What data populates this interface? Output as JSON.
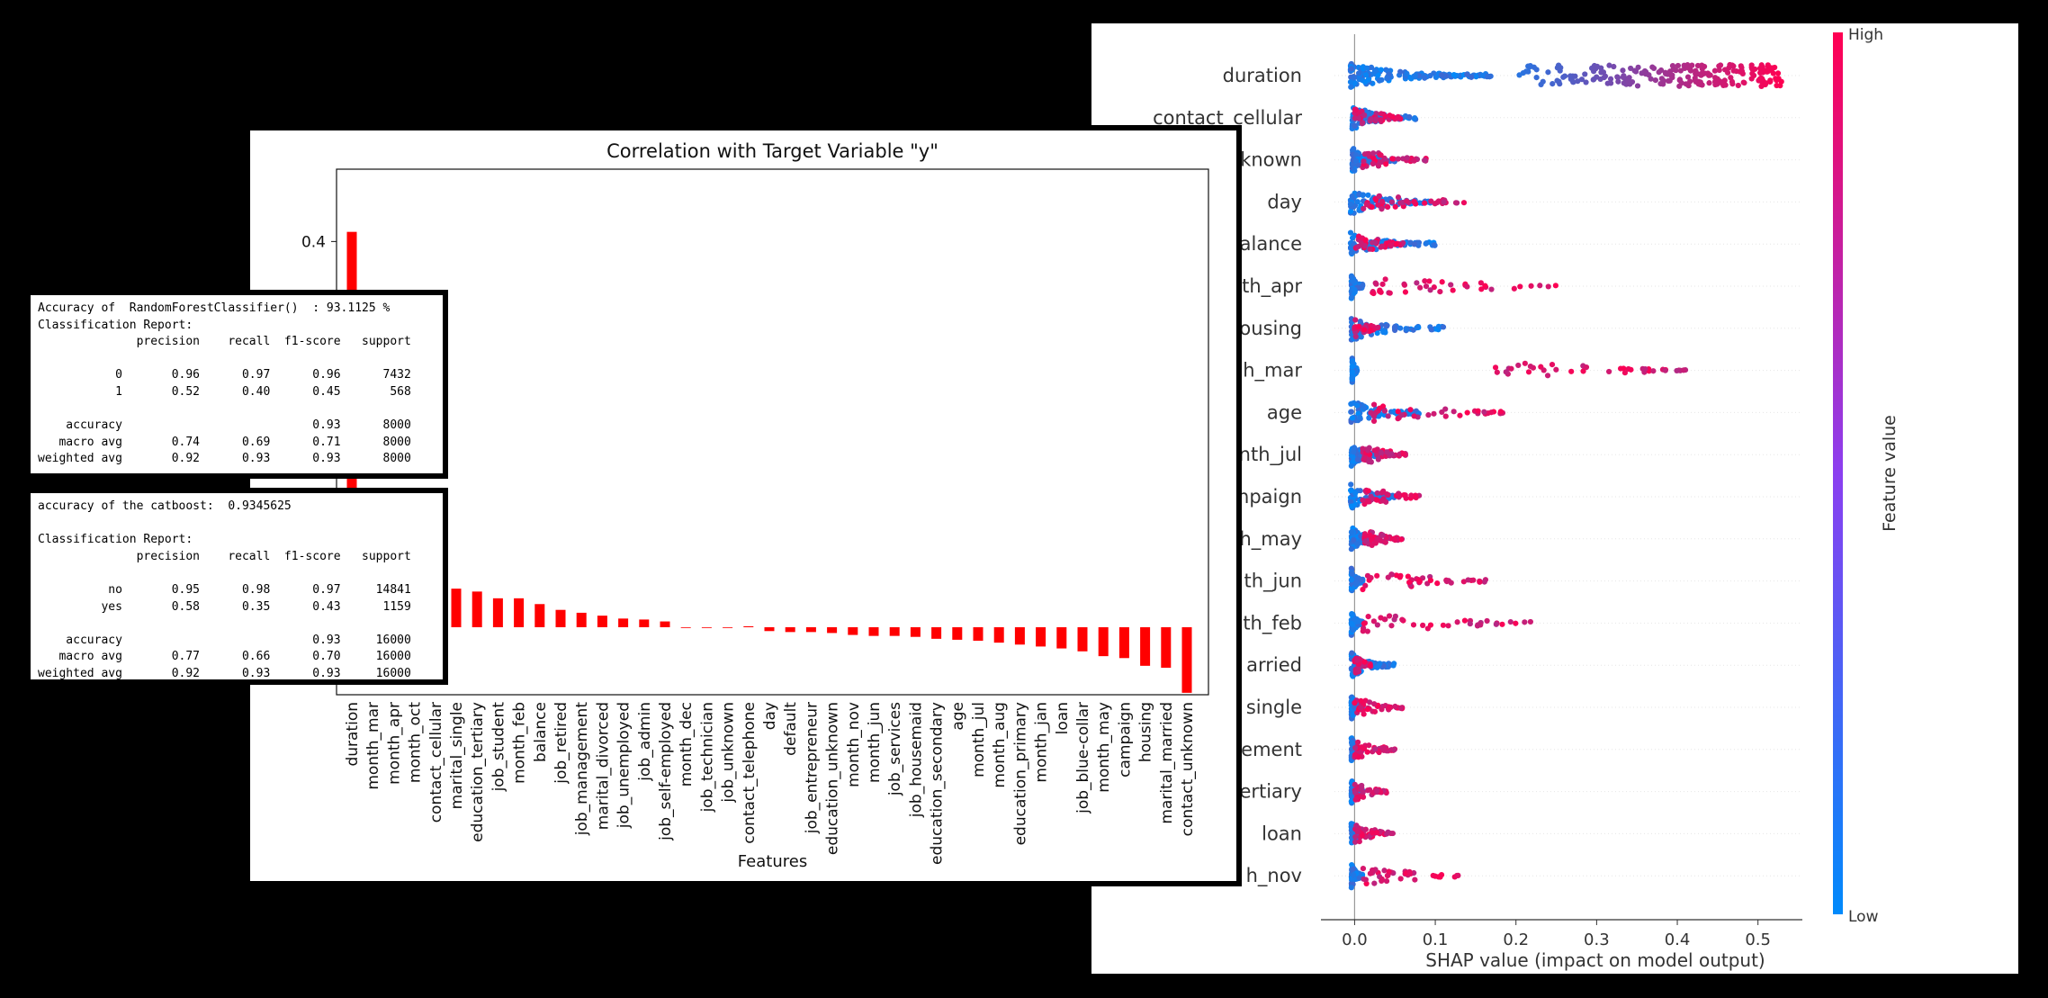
{
  "chart_data": [
    {
      "type": "scatter",
      "chart_kind": "shap_beeswarm",
      "xlabel": "SHAP value (impact on model output)",
      "xlim": [
        -0.025,
        0.555
      ],
      "xticks": [
        0.0,
        0.1,
        0.2,
        0.3,
        0.4,
        0.5
      ],
      "xtick_labels": [
        "0.0",
        "0.1",
        "0.2",
        "0.3",
        "0.4",
        "0.5"
      ],
      "colorbar": {
        "label": "Feature value",
        "high_label": "High",
        "low_label": "Low",
        "low_color": "#008afb",
        "high_color": "#ff0052"
      },
      "features": [
        {
          "label": "duration",
          "blue": [
            -0.005,
            0.17
          ],
          "red": [
            0.2,
            0.53
          ]
        },
        {
          "label": "contact_cellular",
          "blue": [
            -0.003,
            0.08
          ],
          "red": [
            0.0,
            0.06
          ]
        },
        {
          "label": "known",
          "blue": [
            -0.003,
            0.05
          ],
          "red": [
            0.01,
            0.09
          ]
        },
        {
          "label": "day",
          "blue": [
            -0.005,
            0.1
          ],
          "red": [
            0.01,
            0.14
          ]
        },
        {
          "label": "alance",
          "blue": [
            -0.005,
            0.1
          ],
          "red": [
            0.0,
            0.06
          ]
        },
        {
          "label": "th_apr",
          "blue": [
            -0.004,
            0.01
          ],
          "red": [
            0.02,
            0.27
          ]
        },
        {
          "label": "ousing",
          "blue": [
            -0.004,
            0.11
          ],
          "red": [
            0.0,
            0.03
          ]
        },
        {
          "label": "h_mar",
          "blue": [
            -0.003,
            0.003
          ],
          "red": [
            0.17,
            0.42
          ]
        },
        {
          "label": "age",
          "blue": [
            -0.005,
            0.08
          ],
          "red": [
            0.02,
            0.19
          ]
        },
        {
          "label": "nth_jul",
          "blue": [
            -0.004,
            0.03
          ],
          "red": [
            0.01,
            0.07
          ]
        },
        {
          "label": "npaign",
          "blue": [
            -0.005,
            0.05
          ],
          "red": [
            0.01,
            0.08
          ]
        },
        {
          "label": "h_may",
          "blue": [
            -0.004,
            0.03
          ],
          "red": [
            0.01,
            0.06
          ]
        },
        {
          "label": "th_jun",
          "blue": [
            -0.004,
            0.01
          ],
          "red": [
            0.01,
            0.17
          ]
        },
        {
          "label": "th_feb",
          "blue": [
            -0.004,
            0.01
          ],
          "red": [
            0.01,
            0.22
          ]
        },
        {
          "label": "arried",
          "blue": [
            -0.004,
            0.05
          ],
          "red": [
            0.0,
            0.02
          ]
        },
        {
          "label": "single",
          "blue": [
            -0.004,
            0.01
          ],
          "red": [
            0.0,
            0.06
          ]
        },
        {
          "label": "ement",
          "blue": [
            -0.004,
            0.01
          ],
          "red": [
            0.0,
            0.05
          ]
        },
        {
          "label": "ertiary",
          "blue": [
            -0.004,
            0.01
          ],
          "red": [
            0.0,
            0.04
          ]
        },
        {
          "label": "loan",
          "blue": [
            -0.004,
            0.01
          ],
          "red": [
            0.0,
            0.05
          ]
        },
        {
          "label": "h_nov",
          "blue": [
            -0.004,
            0.01
          ],
          "red": [
            0.01,
            0.13
          ]
        }
      ]
    },
    {
      "type": "bar",
      "title": "Correlation with Target Variable \"y\"",
      "xlabel": "Features",
      "ylabel": "",
      "ylim": [
        -0.07,
        0.475
      ],
      "yticks": [
        0.4
      ],
      "ytick_labels": [
        "0.4"
      ],
      "color": "#ff0000",
      "categories": [
        "duration",
        "month_mar",
        "month_apr",
        "month_oct",
        "contact_cellular",
        "marital_single",
        "education_tertiary",
        "job_student",
        "month_feb",
        "balance",
        "job_retired",
        "job_management",
        "marital_divorced",
        "job_unemployed",
        "job_admin",
        "job_self-employed",
        "month_dec",
        "job_technician",
        "job_unknown",
        "contact_telephone",
        "day",
        "default",
        "job_entrepreneur",
        "education_unknown",
        "month_nov",
        "month_jun",
        "job_services",
        "job_housemaid",
        "education_secondary",
        "age",
        "month_jul",
        "month_aug",
        "education_primary",
        "month_jan",
        "loan",
        "job_blue-collar",
        "month_may",
        "campaign",
        "housing",
        "marital_married",
        "contact_unknown"
      ],
      "values": [
        0.41,
        0.1,
        0.1,
        0.095,
        0.09,
        0.04,
        0.037,
        0.03,
        0.03,
        0.024,
        0.018,
        0.015,
        0.012,
        0.009,
        0.008,
        0.006,
        0.0,
        0.0,
        0.0,
        0.001,
        -0.004,
        -0.005,
        -0.005,
        -0.006,
        -0.008,
        -0.009,
        -0.009,
        -0.01,
        -0.012,
        -0.013,
        -0.014,
        -0.016,
        -0.018,
        -0.02,
        -0.022,
        -0.025,
        -0.03,
        -0.032,
        -0.04,
        -0.042,
        -0.068
      ]
    }
  ],
  "rf_report": {
    "lines": [
      "Accuracy of  RandomForestClassifier()  : 93.1125 %",
      "Classification Report:",
      "              precision    recall  f1-score   support",
      "",
      "           0       0.96      0.97      0.96      7432",
      "           1       0.52      0.40      0.45       568",
      "",
      "    accuracy                           0.93      8000",
      "   macro avg       0.74      0.69      0.71      8000",
      "weighted avg       0.92      0.93      0.93      8000"
    ]
  },
  "cb_report": {
    "lines": [
      "accuracy of the catboost:  0.9345625",
      "",
      "Classification Report:",
      "              precision    recall  f1-score   support",
      "",
      "          no       0.95      0.98      0.97     14841",
      "         yes       0.58      0.35      0.43      1159",
      "",
      "    accuracy                           0.93     16000",
      "   macro avg       0.77      0.66      0.70     16000",
      "weighted avg       0.92      0.93      0.93     16000"
    ]
  }
}
